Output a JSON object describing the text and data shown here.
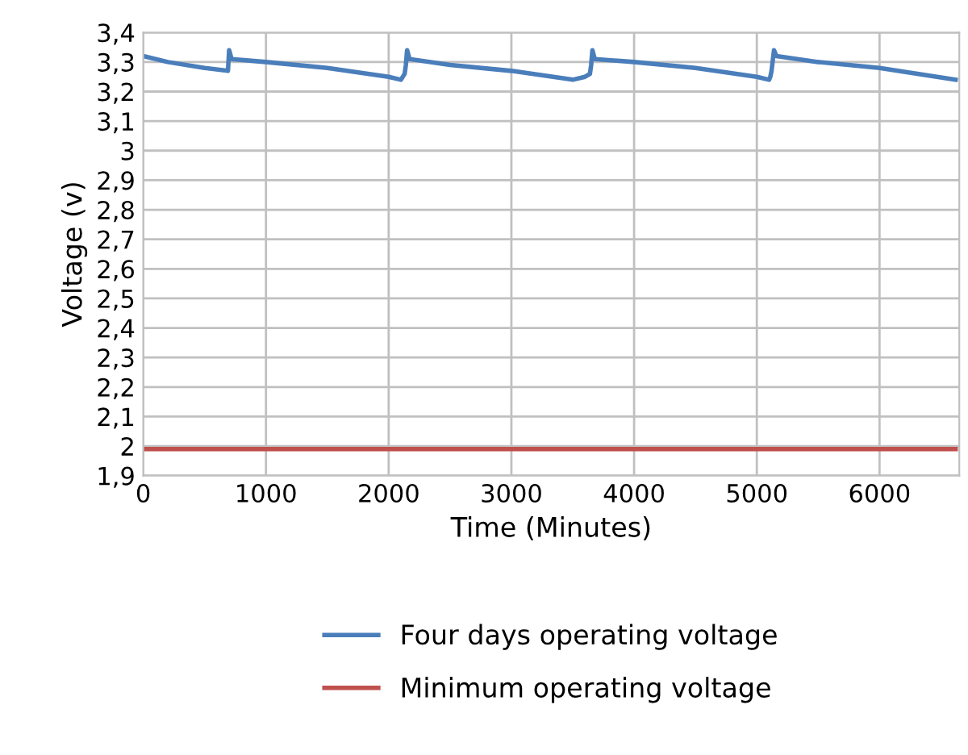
{
  "chart_data": {
    "type": "line",
    "xlabel": "Time (Minutes)",
    "ylabel": "Voltage (v)",
    "xlim": [
      0,
      6650
    ],
    "xticks": [
      0,
      1000,
      2000,
      3000,
      4000,
      5000,
      6000
    ],
    "ylim": [
      1.9,
      3.4
    ],
    "yticks": [
      {
        "value": 1.9,
        "label": "1,9"
      },
      {
        "value": 2.0,
        "label": "2"
      },
      {
        "value": 2.1,
        "label": "2,1"
      },
      {
        "value": 2.2,
        "label": "2,2"
      },
      {
        "value": 2.3,
        "label": "2,3"
      },
      {
        "value": 2.4,
        "label": "2,4"
      },
      {
        "value": 2.5,
        "label": "2,5"
      },
      {
        "value": 2.6,
        "label": "2,6"
      },
      {
        "value": 2.7,
        "label": "2,7"
      },
      {
        "value": 2.8,
        "label": "2,8"
      },
      {
        "value": 2.9,
        "label": "2,9"
      },
      {
        "value": 3.0,
        "label": "3"
      },
      {
        "value": 3.1,
        "label": "3,1"
      },
      {
        "value": 3.2,
        "label": "3,2"
      },
      {
        "value": 3.3,
        "label": "3,3"
      },
      {
        "value": 3.4,
        "label": "3,4"
      }
    ],
    "grid": true,
    "legend": "bottom",
    "marker": "none",
    "line_style": "solid",
    "series": [
      {
        "name": "Four days operating voltage",
        "color": "#4a7ebb",
        "x": [
          0,
          200,
          500,
          690,
          690,
          700,
          720,
          1000,
          1500,
          2000,
          2100,
          2130,
          2140,
          2150,
          2170,
          2500,
          3000,
          3500,
          3600,
          3640,
          3650,
          3660,
          3680,
          4000,
          4500,
          5000,
          5100,
          5110,
          5120,
          5140,
          5160,
          5500,
          6000,
          6620
        ],
        "values": [
          3.32,
          3.3,
          3.28,
          3.27,
          3.27,
          3.34,
          3.31,
          3.3,
          3.28,
          3.25,
          3.24,
          3.26,
          3.29,
          3.34,
          3.31,
          3.29,
          3.27,
          3.24,
          3.25,
          3.26,
          3.29,
          3.34,
          3.31,
          3.3,
          3.28,
          3.25,
          3.24,
          3.25,
          3.27,
          3.34,
          3.32,
          3.3,
          3.28,
          3.24
        ]
      },
      {
        "name": "Minimum operating voltage",
        "color": "#c0504d",
        "x": [
          0,
          6620
        ],
        "values": [
          1.99,
          1.99
        ]
      }
    ]
  }
}
